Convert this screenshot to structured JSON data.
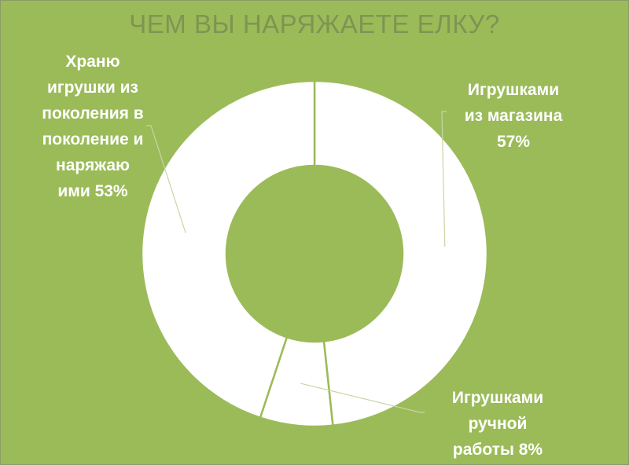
{
  "chart_data": {
    "type": "pie",
    "title": "ЧЕМ ВЫ НАРЯЖАЕТЕ ЕЛКУ?",
    "categories": [
      "Игрушками из магазина",
      "Игрушками ручной работы",
      "Храню игрушки из поколения в поколение и наряжаю ими"
    ],
    "values": [
      57,
      8,
      53
    ],
    "labels": [
      "Игрушками\nиз магазина\n57%",
      "Игрушками\nручной\nработы 8%",
      "Храню\nигрушки из\nпоколения в\nпоколение и\nнаряжаю\nими  53%"
    ],
    "legend": "none",
    "colors": {
      "background": "#9bbb59",
      "slice": "#ffffff",
      "separator": "#9bbb59",
      "title": "#7f9452"
    }
  }
}
